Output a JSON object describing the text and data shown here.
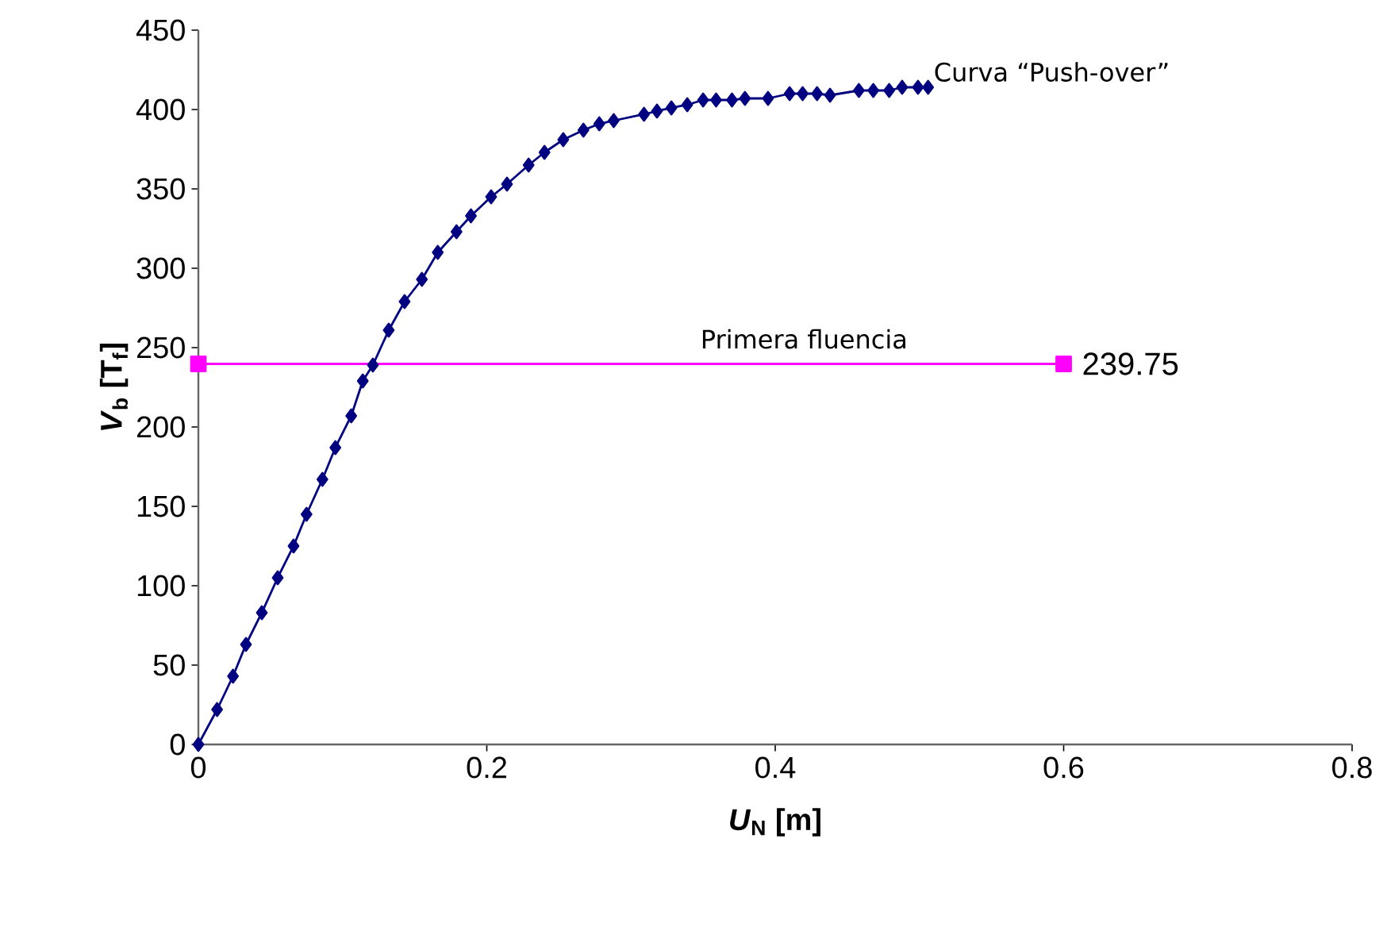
{
  "chart_data": {
    "type": "line",
    "xlabel": "*U*$_{N}$ [m]",
    "ylabel": "*V*$_{b}$ [T$_{f}$]",
    "xlim": [
      0,
      0.8
    ],
    "xticks": [
      0,
      0.2,
      0.4,
      0.6,
      0.8
    ],
    "ylim": [
      0,
      450
    ],
    "yticks": [
      0,
      50,
      100,
      150,
      200,
      250,
      300,
      350,
      400,
      450
    ],
    "grid": false,
    "series": [
      {
        "name": "Curva “Push-over”",
        "color": "#000080",
        "marker": "diamond",
        "x": [
          0,
          0.013,
          0.024,
          0.033,
          0.044,
          0.055,
          0.066,
          0.075,
          0.086,
          0.095,
          0.106,
          0.114,
          0.121,
          0.132,
          0.143,
          0.155,
          0.166,
          0.179,
          0.189,
          0.203,
          0.214,
          0.229,
          0.24,
          0.253,
          0.267,
          0.278,
          0.288,
          0.309,
          0.318,
          0.328,
          0.339,
          0.35,
          0.359,
          0.37,
          0.379,
          0.395,
          0.41,
          0.419,
          0.429,
          0.438,
          0.458,
          0.468,
          0.479,
          0.488,
          0.499,
          0.506
        ],
        "values": [
          0,
          22,
          43,
          63,
          83,
          105,
          125,
          145,
          167,
          187,
          207,
          229,
          239,
          261,
          279,
          293,
          310,
          323,
          333,
          345,
          353,
          365,
          373,
          381,
          387,
          391,
          393,
          397,
          399,
          401,
          403,
          406,
          406,
          406,
          407,
          407,
          410,
          410,
          410,
          409,
          412,
          412,
          412,
          414,
          414,
          414
        ]
      },
      {
        "name": "Primera fluencia",
        "color": "#ff00ff",
        "marker": "square",
        "x": [
          0,
          0.6
        ],
        "values": [
          239.75,
          239.75
        ],
        "value_labels": [
          null,
          "239.75"
        ]
      }
    ]
  }
}
